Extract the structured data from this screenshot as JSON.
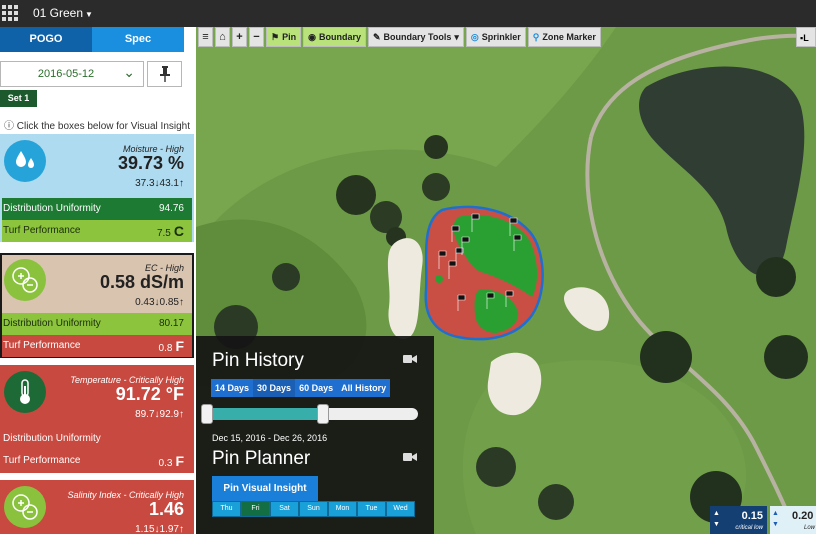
{
  "topbar": {
    "green_label": "01 Green"
  },
  "left": {
    "tabs": [
      {
        "label": "POGO"
      },
      {
        "label": "Spec"
      }
    ],
    "date_value": "2016-05-12",
    "set_badge": "Set 1",
    "insight_hint": "Click the boxes below for Visual Insight",
    "cards": {
      "moisture": {
        "status": "Moisture - High",
        "value": "39.73 %",
        "range": "37.3↓43.1↑",
        "du_label": "Distribution Uniformity",
        "du_value": "94.76",
        "turf_label": "Turf Performance",
        "turf_value": "7.5",
        "turf_grade": "C"
      },
      "ec": {
        "status": "EC - High",
        "value": "0.58 dS/m",
        "range": "0.43↓0.85↑",
        "du_label": "Distribution Uniformity",
        "du_value": "80.17",
        "turf_label": "Turf Performance",
        "turf_value": "0.8",
        "turf_grade": "F"
      },
      "temperature": {
        "status": "Temperature - Critically High",
        "value": "91.72 °F",
        "range": "89.7↓92.9↑",
        "du_label": "Distribution Uniformity",
        "du_value": "",
        "turf_label": "Turf Performance",
        "turf_value": "0.3",
        "turf_grade": "F"
      },
      "salinity": {
        "status": "Salinity Index - Critically High",
        "value": "1.46",
        "range": "1.15↓1.97↑"
      }
    }
  },
  "toolbar": {
    "pin": "Pin",
    "boundary": "Boundary",
    "boundary_tools": "Boundary Tools",
    "sprinkler": "Sprinkler",
    "zone_marker": "Zone Marker",
    "layers": "L"
  },
  "pin_panel": {
    "history_title": "Pin History",
    "history_tabs": [
      "14 Days",
      "30 Days",
      "60 Days",
      "All History"
    ],
    "slider_fill_fraction": 0.55,
    "date_range": "Dec 15, 2016 - Dec 26, 2016",
    "planner_title": "Pin Planner",
    "insight_button": "Pin Visual Insight",
    "days": [
      "Thu",
      "Fri",
      "Sat",
      "Sun",
      "Mon",
      "Tue",
      "Wed"
    ],
    "selected_day": "Fri"
  },
  "legend": {
    "low_value": "0.15",
    "low_label": "critical low",
    "low2_value": "0.20",
    "low2_label": "Low"
  },
  "colors": {
    "pogo_tab": "#0f61a8",
    "spec_tab": "#1a8fe0",
    "moisture_card": "#aedbf0",
    "ec_card": "#d9c4b0",
    "critical_card": "#c8493f",
    "boundary": "#1f6fd0"
  }
}
